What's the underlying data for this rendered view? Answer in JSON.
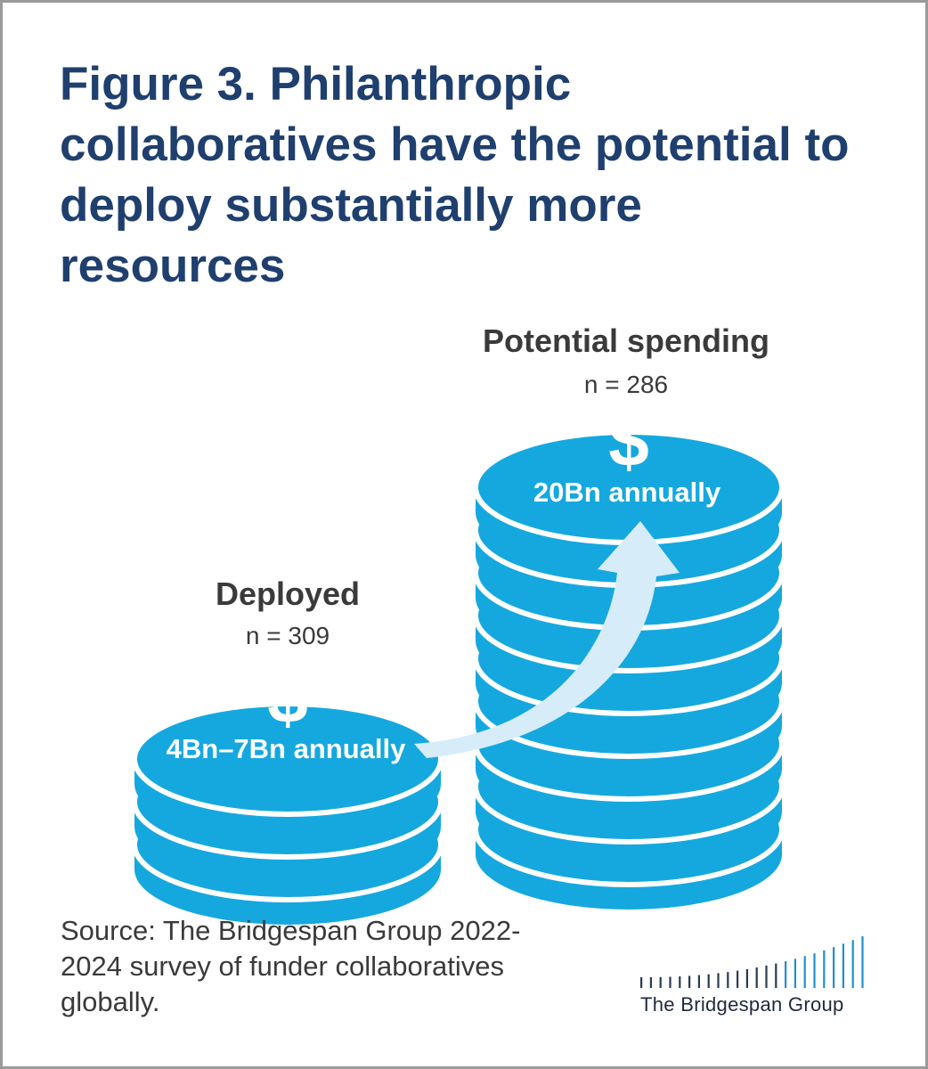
{
  "figure": {
    "title": "Figure 3. Philanthropic collaboratives have the potential to deploy substantially more resources",
    "source": "Source: The Bridgespan Group 2022-2024 survey of funder collaboratives globally.",
    "logo_text": "The Bridgespan Group"
  },
  "colors": {
    "title": "#1f3f6e",
    "coin": "#15a8df",
    "arrow": "#d6edf9",
    "label": "#3a3a3a"
  },
  "chart_data": {
    "type": "pictograph",
    "title": "Figure 3. Philanthropic collaboratives have the potential to deploy substantially more resources",
    "categories": [
      "Deployed",
      "Potential spending"
    ],
    "series": [
      {
        "category": "Deployed",
        "n_label": "n = 309",
        "value_label": "4Bn–7Bn annually",
        "value_range_bn": [
          4,
          7
        ],
        "coin_count": 3,
        "icon": "dollar-sign-icon"
      },
      {
        "category": "Potential spending",
        "n_label": "n = 286",
        "value_label": "20Bn annually",
        "value_bn": 20,
        "coin_count": 9,
        "icon": "dollar-sign-icon"
      }
    ],
    "annotation": "arrow from Deployed to Potential spending"
  }
}
